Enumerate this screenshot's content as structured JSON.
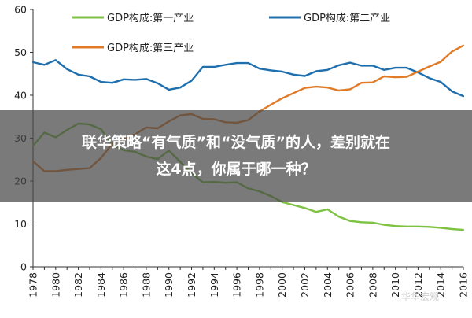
{
  "chart_data": {
    "type": "line",
    "title": "",
    "xlabel": "",
    "ylabel": "",
    "ylim": [
      0,
      60
    ],
    "yticks": [
      0,
      10,
      20,
      30,
      40,
      50,
      60
    ],
    "xlim": [
      1978,
      2016
    ],
    "x": [
      1978,
      1979,
      1980,
      1981,
      1982,
      1983,
      1984,
      1985,
      1986,
      1987,
      1988,
      1989,
      1990,
      1991,
      1992,
      1993,
      1994,
      1995,
      1996,
      1997,
      1998,
      1999,
      2000,
      2001,
      2002,
      2003,
      2004,
      2005,
      2006,
      2007,
      2008,
      2009,
      2010,
      2011,
      2012,
      2013,
      2014,
      2015,
      2016
    ],
    "xticks": [
      "1978",
      "1980",
      "1982",
      "1984",
      "1986",
      "1988",
      "1990",
      "1992",
      "1994",
      "1996",
      "1998",
      "2000",
      "2002",
      "2004",
      "2006",
      "2008",
      "2010",
      "2012",
      "2014",
      "2016"
    ],
    "grid": false,
    "legend_position": "top",
    "series": [
      {
        "name": "GDP构成:第一产业",
        "color": "#7dc242",
        "values": [
          28.2,
          31.3,
          30.2,
          31.9,
          33.4,
          33.2,
          32.1,
          28.4,
          27.2,
          26.8,
          25.7,
          25.1,
          27.1,
          24.5,
          21.8,
          19.7,
          19.8,
          19.6,
          19.7,
          18.3,
          17.6,
          16.5,
          15.1,
          14.4,
          13.7,
          12.8,
          13.4,
          11.7,
          10.7,
          10.4,
          10.3,
          9.8,
          9.5,
          9.4,
          9.4,
          9.3,
          9.1,
          8.8,
          8.6
        ]
      },
      {
        "name": "GDP构成:第二产业",
        "color": "#1f6fae",
        "values": [
          47.7,
          47.1,
          48.2,
          46.1,
          44.8,
          44.4,
          43.1,
          42.9,
          43.7,
          43.6,
          43.8,
          42.8,
          41.3,
          41.8,
          43.4,
          46.6,
          46.6,
          47.1,
          47.5,
          47.5,
          46.2,
          45.8,
          45.5,
          44.8,
          44.5,
          45.6,
          45.9,
          47.0,
          47.6,
          46.9,
          46.9,
          45.9,
          46.4,
          46.4,
          45.3,
          44.0,
          43.1,
          40.9,
          39.8
        ]
      },
      {
        "name": "GDP构成:第三产业",
        "color": "#e07b28",
        "values": [
          24.6,
          22.3,
          22.3,
          22.6,
          22.8,
          23.0,
          25.4,
          28.7,
          29.8,
          30.9,
          32.5,
          32.3,
          33.9,
          35.3,
          35.6,
          34.5,
          34.4,
          33.7,
          33.6,
          34.2,
          36.2,
          37.8,
          39.3,
          40.5,
          41.7,
          42.0,
          41.8,
          41.1,
          41.4,
          42.9,
          43.0,
          44.4,
          44.2,
          44.3,
          45.5,
          46.7,
          47.8,
          50.2,
          51.6
        ]
      }
    ]
  },
  "overlay": {
    "line1": "联华策略“有气质”和“没气质”的人，差别就在",
    "line2": "这4点，你属于哪一种？"
  },
  "watermark": "华华宏观"
}
